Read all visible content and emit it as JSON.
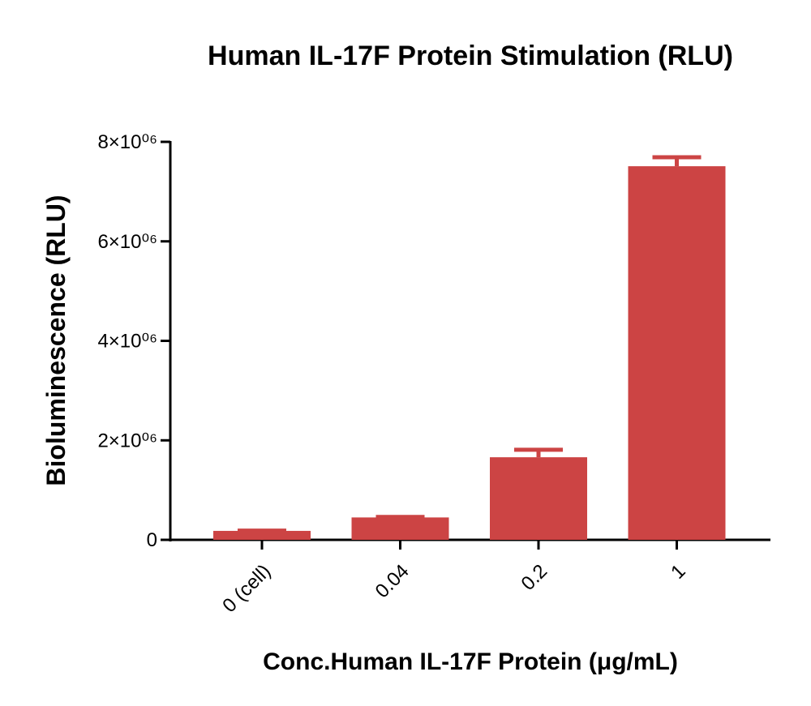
{
  "chart_data": {
    "type": "bar",
    "title": "Human IL-17F Protein Stimulation (RLU)",
    "xlabel": "Conc.Human IL-17F Protein (μg/mL)",
    "ylabel": "Bioluminescence (RLU)",
    "categories": [
      "0 (cell)",
      "0.04",
      "0.2",
      "1"
    ],
    "values": [
      180000,
      450000,
      1660000,
      7510000
    ],
    "errors": [
      5000,
      10000,
      150000,
      180000
    ],
    "color": "#cc4444",
    "ylim": [
      0,
      8000000
    ],
    "yticks": [
      0,
      {
        "value": 2000000,
        "label": "2×10⁰⁶"
      },
      {
        "value": 4000000,
        "label": "4×10⁰⁶"
      },
      {
        "value": 6000000,
        "label": "6×10⁰⁶"
      },
      {
        "value": 8000000,
        "label": "8×10⁰⁶"
      }
    ],
    "grid": false
  }
}
